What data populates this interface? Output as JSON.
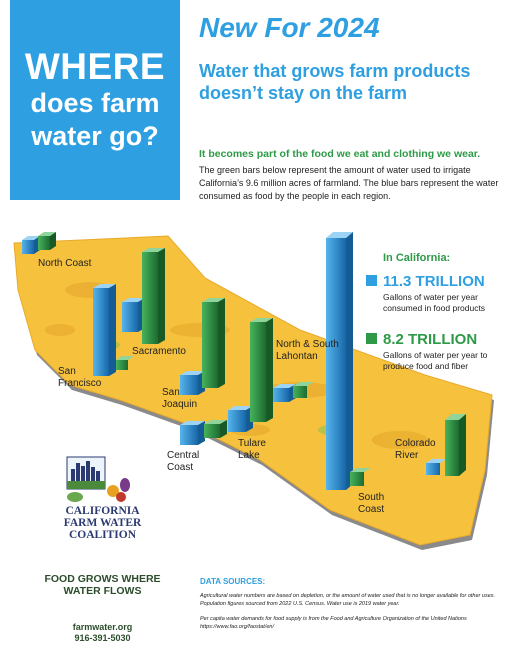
{
  "hero": {
    "line1": "WHERE",
    "line2": "does farm",
    "line3": "water go?"
  },
  "headline": "New For 2024",
  "subheadline": "Water that grows farm products doesn’t stay on the farm",
  "lead": "It becomes part of the food we eat and clothing we wear.",
  "body": "The green bars below represent the amount of water used to irrigate California’s 9.6 million acres of farmland. The blue bars represent the water consumed as food by the people in each region.",
  "regions": [
    {
      "name": "North Coast"
    },
    {
      "name": "Sacramento"
    },
    {
      "name": "San Francisco"
    },
    {
      "name": "San Joaquin"
    },
    {
      "name": "Central Coast"
    },
    {
      "name": "Tulare Lake"
    },
    {
      "name": "North & South Lahontan"
    },
    {
      "name": "Colorado River"
    },
    {
      "name": "South Coast"
    }
  ],
  "legend": {
    "heading": "In California:",
    "blue_value": "11.3 TRILLION",
    "blue_desc": "Gallons of water per year consumed in food products",
    "green_value": "8.2 TRILLION",
    "green_desc": "Gallons of water per year to produce food and fiber",
    "blue_color": "#2e9fe0",
    "green_color": "#2e9a47"
  },
  "logo": {
    "line1": "CALIFORNIA",
    "line2": "FARM WATER",
    "line3": "COALITION"
  },
  "tagline": "FOOD GROWS WHERE WATER FLOWS",
  "website": "farmwater.org",
  "phone": "916-391-5030",
  "sources": {
    "heading": "DATA SOURCES:",
    "note1": "Agricultural water numbers are based on depletion, or the amount of water used that is no longer available for other uses. Population figures sourced from 2022 U.S. Census. Water use is 2019 water year.",
    "note2": "Per capita water demands for food supply is from the Food and Agriculture Organization of the United Nations https://www.fao.org/faostat/en/"
  }
}
